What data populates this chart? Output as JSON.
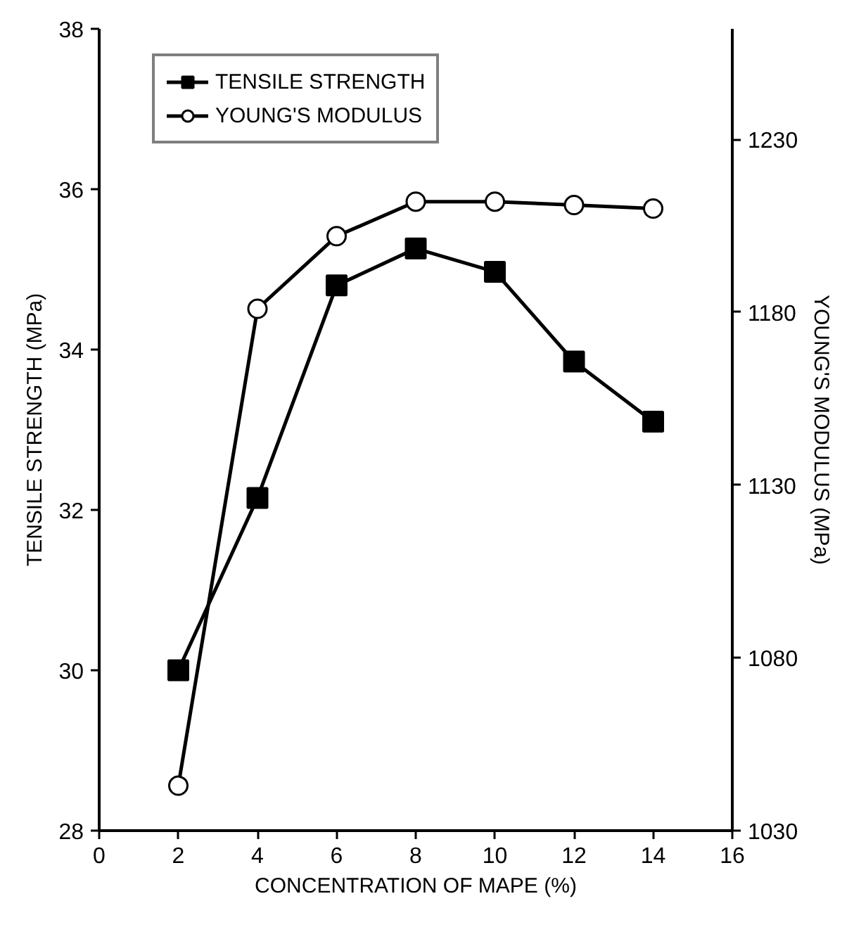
{
  "chart_data": {
    "type": "line",
    "xlabel": "CONCENTRATION OF MAPE (%)",
    "ylabel": "TENSILE STRENGTH (MPa)",
    "y2label": "YOUNG'S MODULUS (MPa)",
    "x": [
      2,
      4,
      6,
      8,
      10,
      12,
      14
    ],
    "xlim": [
      0,
      16
    ],
    "xticks": [
      0,
      2,
      4,
      6,
      8,
      10,
      12,
      14,
      16
    ],
    "ylim": [
      28,
      38
    ],
    "yticks": [
      28,
      30,
      32,
      34,
      36,
      38
    ],
    "y2lim": [
      1030,
      1262
    ],
    "y2ticks": [
      1030,
      1080,
      1130,
      1180,
      1230
    ],
    "series": [
      {
        "name": "TENSILE STRENGTH",
        "color": "#000000",
        "marker": "square",
        "values": [
          30.0,
          32.15,
          34.8,
          35.26,
          34.97,
          33.85,
          33.1
        ]
      },
      {
        "name": "YOUNG'S MODULUS",
        "color": "#000000",
        "marker": "circle",
        "axis": "y2",
        "values": [
          1043,
          1181,
          1202,
          1212,
          1212,
          1211,
          1210
        ]
      }
    ],
    "grid": false,
    "legend": "top left",
    "line_style": "solid"
  }
}
